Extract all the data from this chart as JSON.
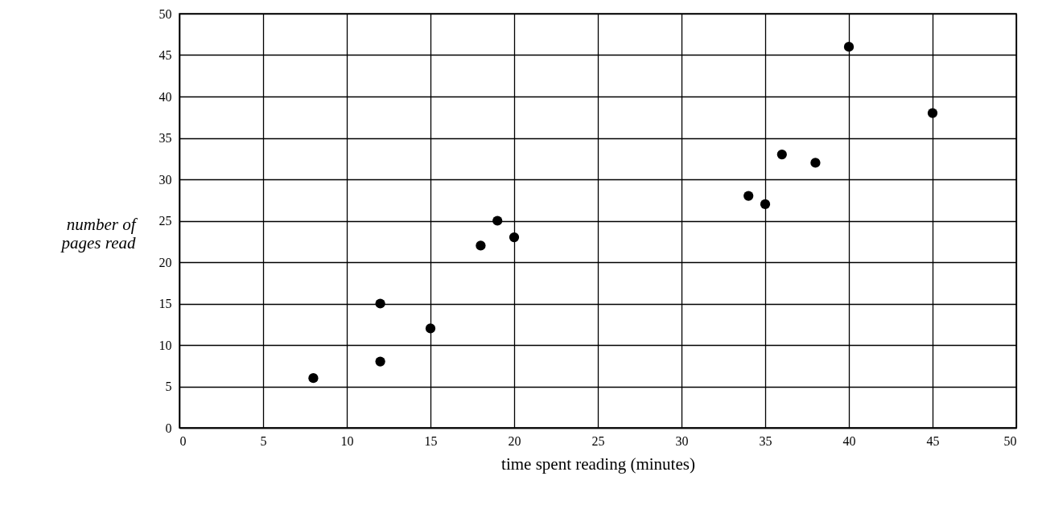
{
  "chart_data": {
    "type": "scatter",
    "xlabel": "time spent reading (minutes)",
    "ylabel": "number of\npages read",
    "x": [
      8,
      12,
      12,
      15,
      18,
      19,
      20,
      34,
      35,
      36,
      38,
      40,
      45
    ],
    "series": [
      {
        "color": "#000000",
        "values": [
          6,
          15,
          8,
          12,
          22,
          25,
          23,
          28,
          27,
          33,
          32,
          46,
          38
        ]
      }
    ],
    "xlim": [
      0,
      50
    ],
    "xticks": [
      0,
      5,
      10,
      15,
      20,
      25,
      30,
      35,
      40,
      45,
      50
    ],
    "ylim": [
      0,
      50
    ],
    "yticks": [
      0,
      5,
      10,
      15,
      20,
      25,
      30,
      35,
      40,
      45,
      50
    ],
    "grid": true,
    "marker": "circle"
  }
}
